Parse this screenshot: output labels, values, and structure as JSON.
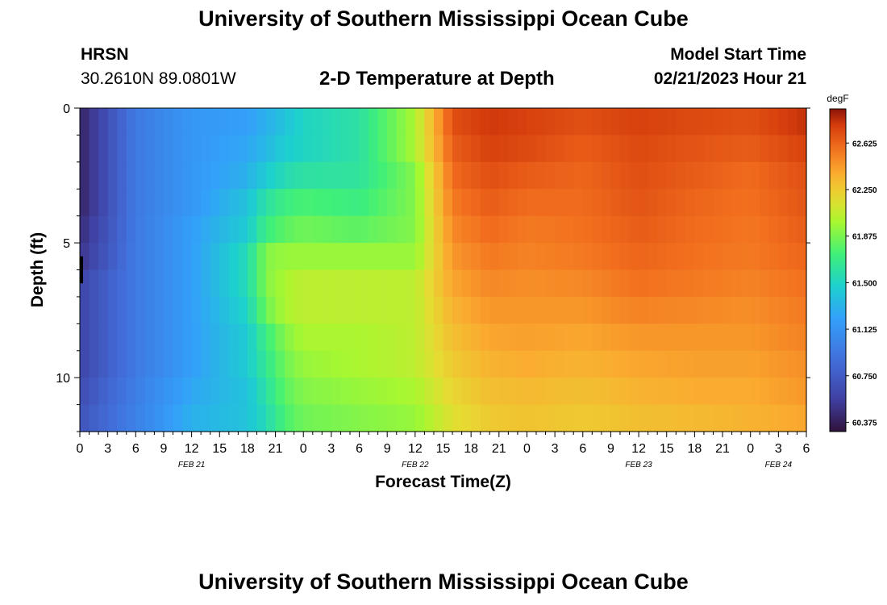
{
  "header": {
    "title": "University of Southern Mississippi Ocean Cube",
    "station_name": "HRSN",
    "station_coords": "30.2610N  89.0801W",
    "plot_title": "2-D Temperature at Depth",
    "start_label": "Model Start Time",
    "start_value": "02/21/2023 Hour 21"
  },
  "footer": {
    "title": "University of Southern Mississippi Ocean Cube"
  },
  "chart_data": {
    "type": "heatmap",
    "title": "2-D Temperature at Depth",
    "xlabel": "Forecast Time(Z)",
    "ylabel": "Depth (ft)",
    "x_range_hours": [
      0,
      78
    ],
    "x_tick_labels": [
      "0",
      "3",
      "6",
      "9",
      "12",
      "15",
      "18",
      "21",
      "0",
      "3",
      "6",
      "9",
      "12",
      "15",
      "18",
      "21",
      "0",
      "3",
      "6",
      "9",
      "12",
      "15",
      "18",
      "21",
      "0",
      "3",
      "6"
    ],
    "date_labels": [
      {
        "label": "FEB 21",
        "hour": 12
      },
      {
        "label": "FEB 22",
        "hour": 36
      },
      {
        "label": "FEB 23",
        "hour": 60
      },
      {
        "label": "FEB 24",
        "hour": 75
      }
    ],
    "y_range": [
      0,
      12
    ],
    "y_ticks": [
      0,
      5,
      10
    ],
    "colorbar": {
      "unit": "degF",
      "min": 60.3,
      "max": 62.9,
      "tick_labels": [
        "60.375",
        "60.750",
        "61.125",
        "61.500",
        "61.875",
        "62.250",
        "62.625"
      ],
      "tick_values": [
        60.375,
        60.75,
        61.125,
        61.5,
        61.875,
        62.25,
        62.625
      ]
    },
    "depth_layers_ft": [
      0.5,
      1.5,
      2.5,
      3.5,
      4.5,
      5.5,
      6.5,
      7.5,
      8.5,
      9.5,
      10.5,
      11.5
    ],
    "time_hours": [
      0,
      6,
      12,
      18,
      20,
      22,
      24,
      30,
      36,
      40,
      44,
      48,
      54,
      60,
      66,
      72,
      78
    ],
    "temperature_degF": [
      [
        60.4,
        60.95,
        61.15,
        61.2,
        61.3,
        61.4,
        61.5,
        61.6,
        62.0,
        62.7,
        62.78,
        62.75,
        62.7,
        62.75,
        62.72,
        62.7,
        62.8
      ],
      [
        60.4,
        60.95,
        61.15,
        61.25,
        61.35,
        61.45,
        61.5,
        61.6,
        62.0,
        62.65,
        62.75,
        62.72,
        62.65,
        62.72,
        62.68,
        62.65,
        62.75
      ],
      [
        60.4,
        60.95,
        61.15,
        61.3,
        61.45,
        61.55,
        61.6,
        61.62,
        61.9,
        62.6,
        62.7,
        62.65,
        62.62,
        62.7,
        62.65,
        62.6,
        62.7
      ],
      [
        60.4,
        60.95,
        61.15,
        61.4,
        61.6,
        61.7,
        61.75,
        61.7,
        61.9,
        62.55,
        62.65,
        62.6,
        62.6,
        62.68,
        62.62,
        62.58,
        62.68
      ],
      [
        60.45,
        60.95,
        61.2,
        61.45,
        61.7,
        61.8,
        61.85,
        61.8,
        61.9,
        62.5,
        62.6,
        62.55,
        62.58,
        62.65,
        62.6,
        62.56,
        62.65
      ],
      [
        60.5,
        60.95,
        61.2,
        61.55,
        61.9,
        61.95,
        61.95,
        61.95,
        61.95,
        62.45,
        62.55,
        62.52,
        62.55,
        62.62,
        62.58,
        62.55,
        62.62
      ],
      [
        60.6,
        60.95,
        61.2,
        61.55,
        61.9,
        62.0,
        62.05,
        62.05,
        62.05,
        62.4,
        62.5,
        62.48,
        62.5,
        62.58,
        62.55,
        62.52,
        62.58
      ],
      [
        60.6,
        60.95,
        61.2,
        61.5,
        61.85,
        62.0,
        62.05,
        62.05,
        62.05,
        62.35,
        62.45,
        62.45,
        62.45,
        62.52,
        62.5,
        62.48,
        62.55
      ],
      [
        60.6,
        60.95,
        61.2,
        61.45,
        61.7,
        61.9,
        62.0,
        62.0,
        62.05,
        62.3,
        62.4,
        62.42,
        62.4,
        62.45,
        62.45,
        62.45,
        62.52
      ],
      [
        60.6,
        60.95,
        61.2,
        61.45,
        61.65,
        61.85,
        61.95,
        62.0,
        62.05,
        62.25,
        62.35,
        62.38,
        62.35,
        62.4,
        62.42,
        62.42,
        62.48
      ],
      [
        60.65,
        60.98,
        61.25,
        61.4,
        61.6,
        61.8,
        61.9,
        61.95,
        62.0,
        62.2,
        62.3,
        62.32,
        62.3,
        62.35,
        62.38,
        62.38,
        62.45
      ],
      [
        60.7,
        61.0,
        61.3,
        61.4,
        61.55,
        61.75,
        61.85,
        61.9,
        61.95,
        62.15,
        62.25,
        62.28,
        62.25,
        62.3,
        62.32,
        62.35,
        62.4
      ]
    ],
    "grid": false,
    "legend": "right colorbar"
  }
}
